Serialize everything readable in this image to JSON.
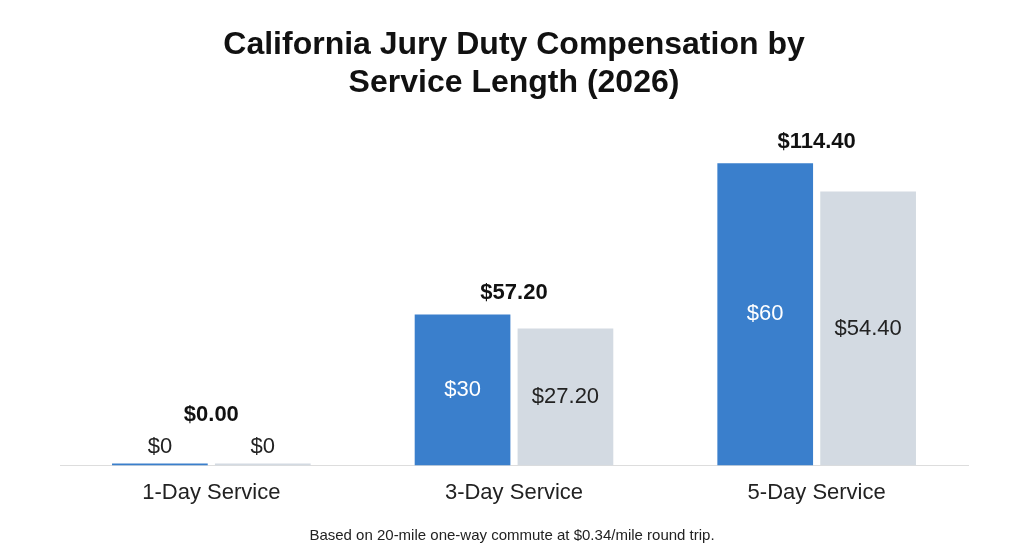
{
  "chart_data": {
    "type": "bar",
    "title": [
      "California Jury Duty Compensation by",
      "Service Length (2026)"
    ],
    "categories": [
      "1-Day Service",
      "3-Day Service",
      "5-Day Service"
    ],
    "series": [
      {
        "color": "#3a7fcc",
        "values": [
          0,
          30,
          60
        ],
        "value_labels": [
          "$0",
          "$30",
          "$60"
        ]
      },
      {
        "color": "#d3dae2",
        "values": [
          0,
          27.2,
          54.4
        ],
        "value_labels": [
          "$0",
          "$27.20",
          "$54.40"
        ]
      }
    ],
    "totals": [
      "$0.00",
      "$57.20",
      "$114.40"
    ],
    "legend": false,
    "grid": false,
    "annotations": [
      "Based on 20-mile one-way commute at $0.34/mile round trip."
    ]
  }
}
